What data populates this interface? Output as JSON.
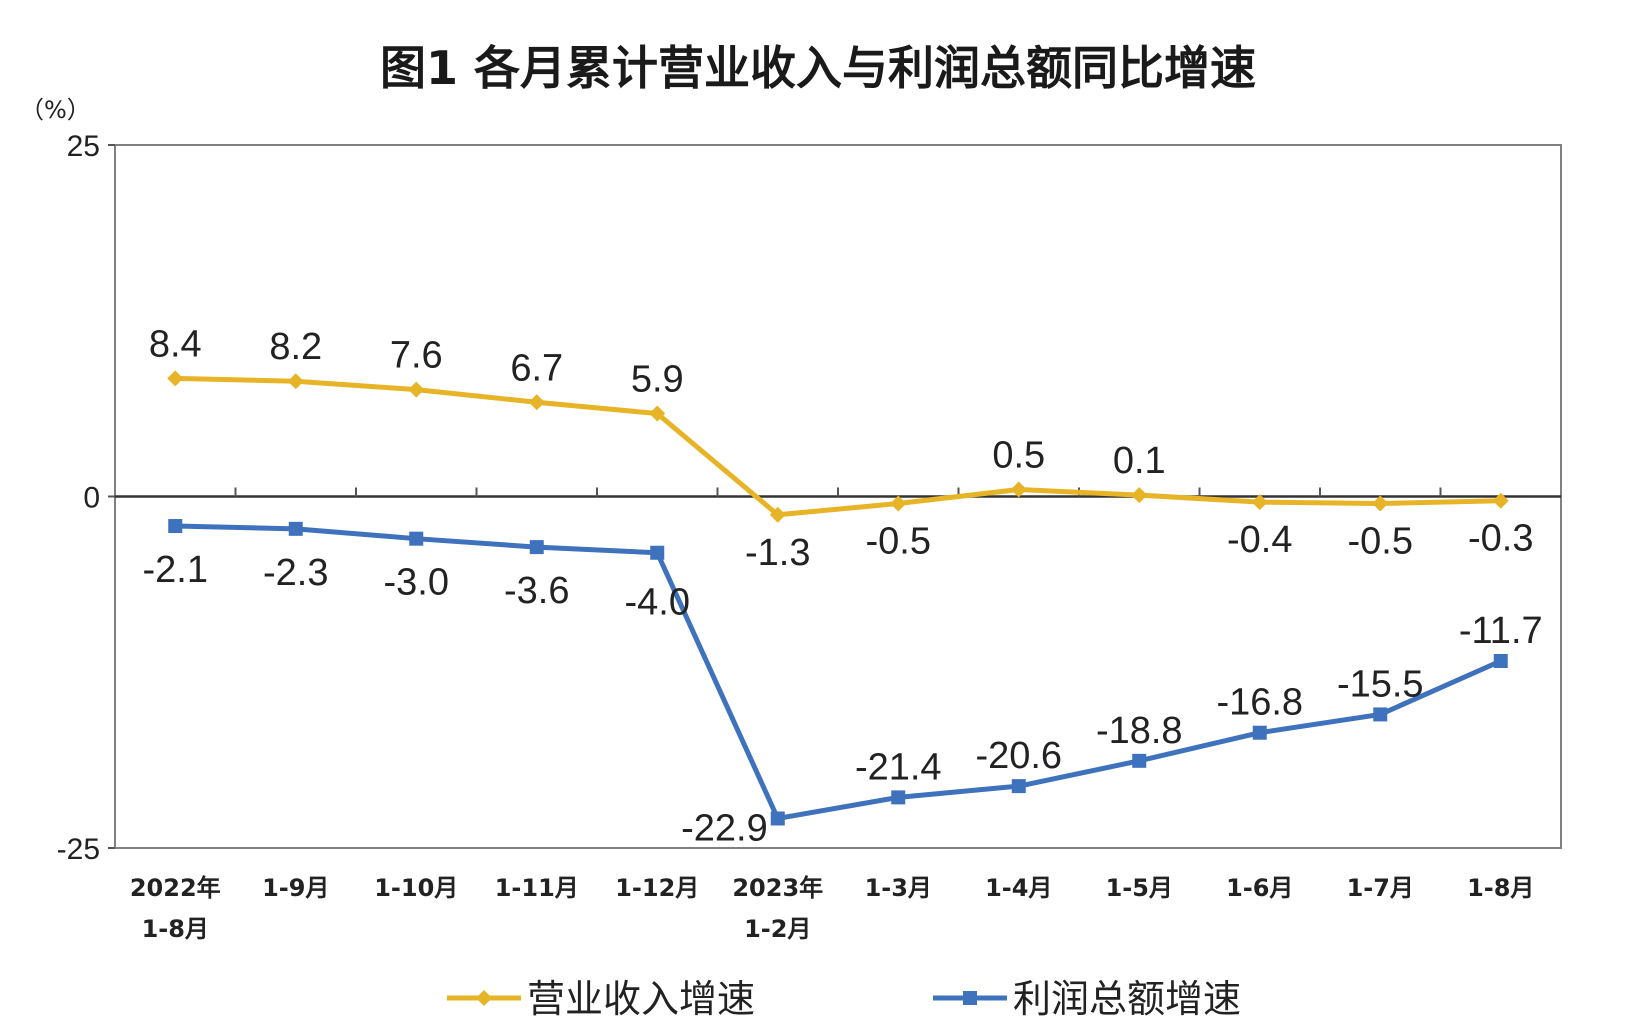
{
  "chart_data": {
    "type": "line",
    "title": "图1  各月累计营业收入与利润总额同比增速",
    "unit_label": "（%）",
    "ylim": [
      -25,
      25
    ],
    "yticks": [
      {
        "value": 25,
        "label": "25"
      },
      {
        "value": 0,
        "label": "0"
      },
      {
        "value": -25,
        "label": "-25"
      }
    ],
    "categories": [
      [
        "2022年",
        "1-8月"
      ],
      [
        "1-9月"
      ],
      [
        "1-10月"
      ],
      [
        "1-11月"
      ],
      [
        "1-12月"
      ],
      [
        "2023年",
        "1-2月"
      ],
      [
        "1-3月"
      ],
      [
        "1-4月"
      ],
      [
        "1-5月"
      ],
      [
        "1-6月"
      ],
      [
        "1-7月"
      ],
      [
        "1-8月"
      ]
    ],
    "series": [
      {
        "name": "营业收入增速",
        "color": "#E8B427",
        "marker": "diamond",
        "values": [
          8.4,
          8.2,
          7.6,
          6.7,
          5.9,
          -1.3,
          -0.5,
          0.5,
          0.1,
          -0.4,
          -0.5,
          -0.3
        ],
        "labels": [
          "8.4",
          "8.2",
          "7.6",
          "6.7",
          "5.9",
          "-1.3",
          "-0.5",
          "0.5",
          "0.1",
          "-0.4",
          "-0.5",
          "-0.3"
        ]
      },
      {
        "name": "利润总额增速",
        "color": "#3F72BC",
        "marker": "square",
        "values": [
          -2.1,
          -2.3,
          -3.0,
          -3.6,
          -4.0,
          -22.9,
          -21.4,
          -20.6,
          -18.8,
          -16.8,
          -15.5,
          -11.7
        ],
        "labels": [
          "-2.1",
          "-2.3",
          "-3.0",
          "-3.6",
          "-4.0",
          "-22.9",
          "-21.4",
          "-20.6",
          "-18.8",
          "-16.8",
          "-15.5",
          "-11.7"
        ]
      }
    ],
    "grid": false,
    "legend_position": "bottom"
  }
}
